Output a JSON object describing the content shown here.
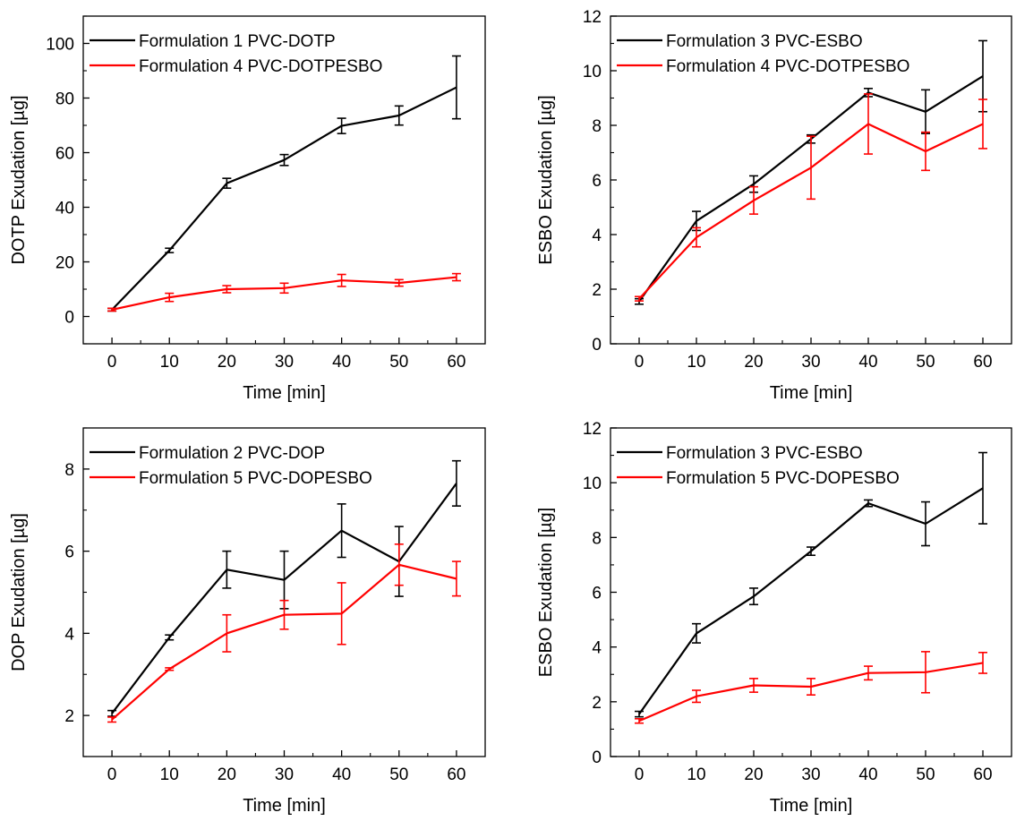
{
  "chart_data": [
    {
      "type": "line",
      "xlabel": "Time [min]",
      "ylabel": "DOTP Exudation [µg]",
      "x": [
        0,
        10,
        20,
        30,
        40,
        50,
        60
      ],
      "xlim": [
        -5,
        65
      ],
      "ylim": [
        -10,
        110
      ],
      "xticks": [
        0,
        10,
        20,
        30,
        40,
        50,
        60
      ],
      "yticks": [
        0,
        20,
        40,
        60,
        80,
        100
      ],
      "legend_position": "top-left",
      "series": [
        {
          "name": "Formulation 1 PVC-DOTP",
          "color": "#000000",
          "values": [
            2.5,
            24.2,
            48.8,
            57.3,
            69.8,
            73.6,
            83.9
          ],
          "errors": [
            0.5,
            0.8,
            1.8,
            2.0,
            2.8,
            3.5,
            11.5
          ]
        },
        {
          "name": "Formulation 4 PVC-DOTPESBO",
          "color": "#ff0000",
          "values": [
            2.5,
            7.0,
            10.0,
            10.4,
            13.2,
            12.3,
            14.4
          ],
          "errors": [
            0.5,
            1.5,
            1.3,
            1.8,
            2.2,
            1.2,
            1.3
          ]
        }
      ]
    },
    {
      "type": "line",
      "xlabel": "Time [min]",
      "ylabel": "ESBO Exudation [µg]",
      "x": [
        0,
        10,
        20,
        30,
        40,
        50,
        60
      ],
      "xlim": [
        -5,
        65
      ],
      "ylim": [
        0,
        12
      ],
      "xticks": [
        0,
        10,
        20,
        30,
        40,
        50,
        60
      ],
      "yticks": [
        0,
        2,
        4,
        6,
        8,
        10,
        12
      ],
      "legend_position": "top-left",
      "series": [
        {
          "name": "Formulation 3 PVC-ESBO",
          "color": "#000000",
          "values": [
            1.55,
            4.5,
            5.85,
            7.5,
            9.2,
            8.5,
            9.8
          ],
          "errors": [
            0.1,
            0.35,
            0.3,
            0.15,
            0.15,
            0.8,
            1.3
          ]
        },
        {
          "name": "Formulation 4 PVC-DOTPESBO",
          "color": "#ff0000",
          "values": [
            1.65,
            3.9,
            5.25,
            6.45,
            8.05,
            7.05,
            8.05
          ],
          "errors": [
            0.08,
            0.35,
            0.5,
            1.15,
            1.1,
            0.7,
            0.9
          ]
        }
      ]
    },
    {
      "type": "line",
      "xlabel": "Time [min]",
      "ylabel": "DOP Exudation [µg]",
      "x": [
        0,
        10,
        20,
        30,
        40,
        50,
        60
      ],
      "xlim": [
        -5,
        65
      ],
      "ylim": [
        1,
        9
      ],
      "xticks": [
        0,
        10,
        20,
        30,
        40,
        50,
        60
      ],
      "yticks": [
        2,
        4,
        6,
        8
      ],
      "legend_position": "top-left",
      "series": [
        {
          "name": "Formulation 2 PVC-DOP",
          "color": "#000000",
          "values": [
            2.05,
            3.9,
            5.55,
            5.3,
            6.5,
            5.75,
            7.65
          ],
          "errors": [
            0.07,
            0.06,
            0.45,
            0.7,
            0.65,
            0.85,
            0.55
          ]
        },
        {
          "name": "Formulation 5 PVC-DOPESBO",
          "color": "#ff0000",
          "values": [
            1.9,
            3.13,
            4.0,
            4.45,
            4.48,
            5.67,
            5.33
          ],
          "errors": [
            0.06,
            0.03,
            0.45,
            0.35,
            0.75,
            0.5,
            0.42
          ]
        }
      ]
    },
    {
      "type": "line",
      "xlabel": "Time [min]",
      "ylabel": "ESBO Exudation [µg]",
      "x": [
        0,
        10,
        20,
        30,
        40,
        50,
        60
      ],
      "xlim": [
        -5,
        65
      ],
      "ylim": [
        0,
        12
      ],
      "xticks": [
        0,
        10,
        20,
        30,
        40,
        50,
        60
      ],
      "yticks": [
        0,
        2,
        4,
        6,
        8,
        10,
        12
      ],
      "legend_position": "top-left",
      "series": [
        {
          "name": "Formulation 3 PVC-ESBO",
          "color": "#000000",
          "values": [
            1.55,
            4.5,
            5.85,
            7.5,
            9.25,
            8.5,
            9.8
          ],
          "errors": [
            0.1,
            0.35,
            0.3,
            0.15,
            0.12,
            0.8,
            1.3
          ]
        },
        {
          "name": "Formulation 5 PVC-DOPESBO",
          "color": "#ff0000",
          "values": [
            1.3,
            2.2,
            2.6,
            2.55,
            3.05,
            3.08,
            3.42
          ],
          "errors": [
            0.08,
            0.22,
            0.25,
            0.3,
            0.25,
            0.75,
            0.38
          ]
        }
      ]
    }
  ]
}
